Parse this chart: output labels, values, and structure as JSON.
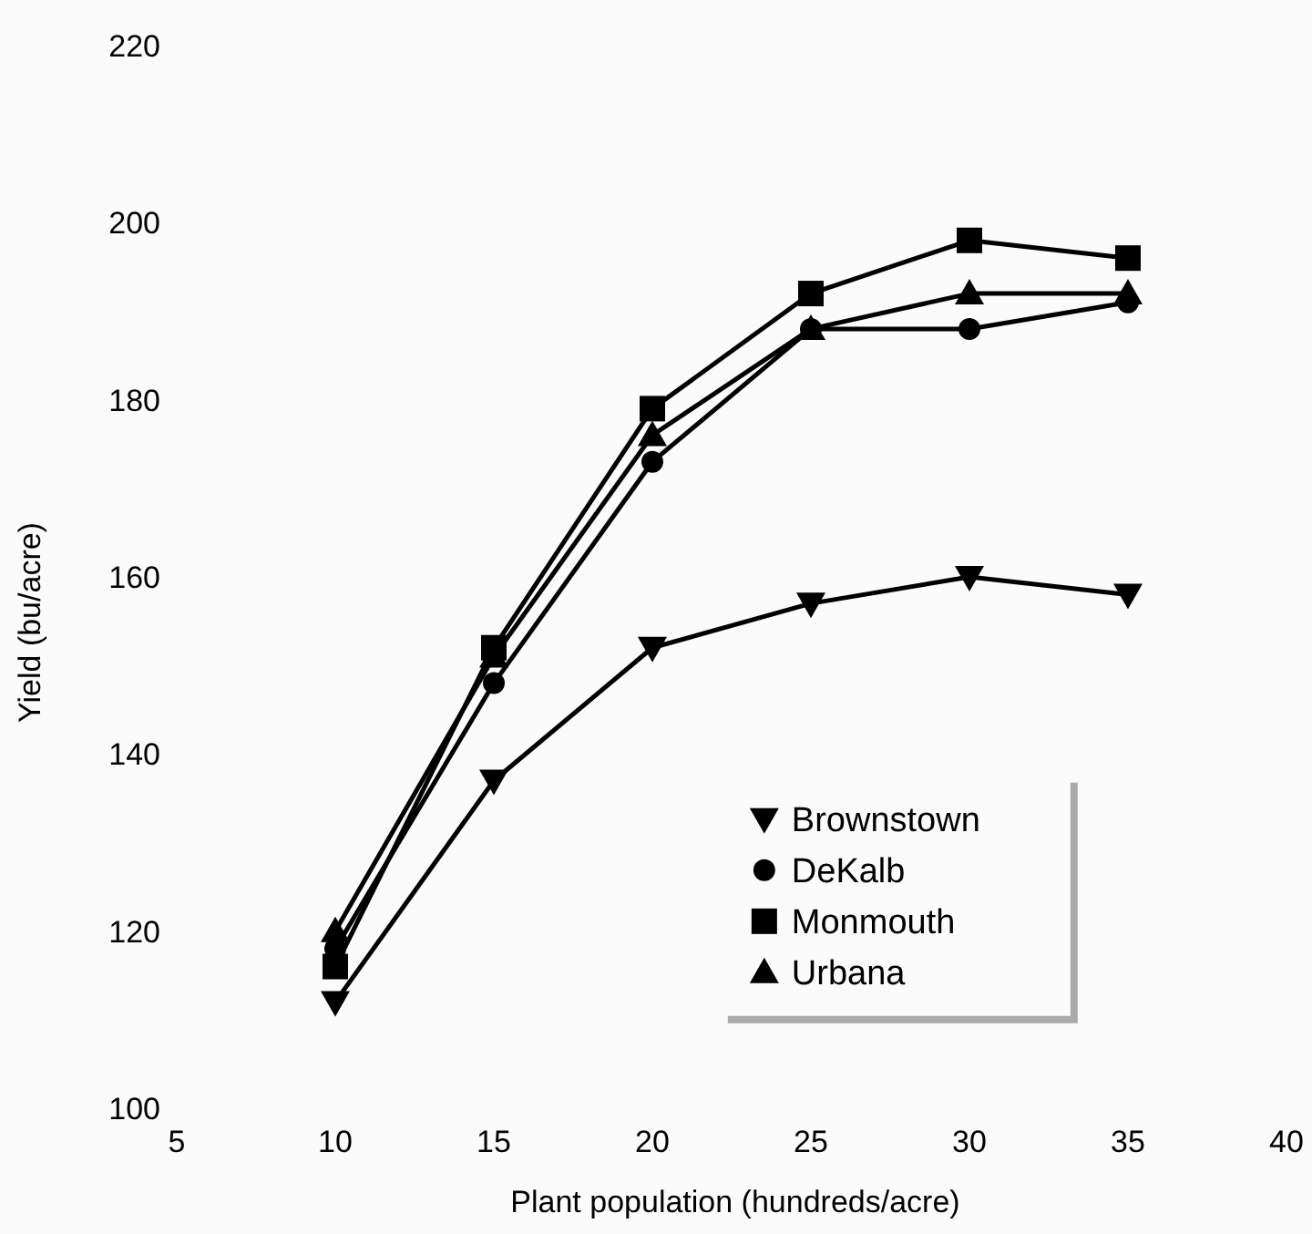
{
  "chart_data": {
    "type": "line",
    "xlabel": "Plant population (hundreds/acre)",
    "ylabel": "Yield (bu/acre)",
    "x": [
      10,
      15,
      20,
      25,
      30,
      35
    ],
    "xlim": [
      5,
      40
    ],
    "xticks": [
      5,
      10,
      15,
      20,
      25,
      30,
      35,
      40
    ],
    "ylim": [
      100,
      220
    ],
    "yticks": [
      100,
      120,
      140,
      160,
      180,
      200,
      220
    ],
    "grid": false,
    "legend": "bottom right",
    "series": [
      {
        "name": "Brownstown",
        "color": "#000000",
        "marker": "triangle-down",
        "values": [
          112,
          137,
          152,
          157,
          160,
          158
        ]
      },
      {
        "name": "DeKalb",
        "color": "#000000",
        "marker": "circle",
        "values": [
          118,
          148,
          173,
          188,
          188,
          191
        ]
      },
      {
        "name": "Monmouth",
        "color": "#000000",
        "marker": "square",
        "values": [
          116,
          152,
          179,
          192,
          198,
          196
        ]
      },
      {
        "name": "Urbana",
        "color": "#000000",
        "marker": "triangle",
        "values": [
          120,
          151,
          176,
          188,
          192,
          192
        ]
      }
    ]
  }
}
